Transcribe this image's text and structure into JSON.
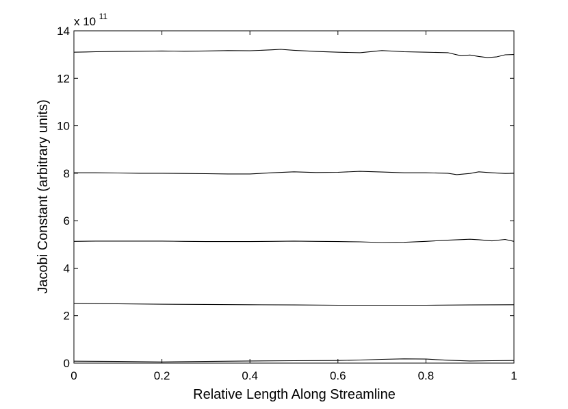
{
  "chart_data": {
    "type": "line",
    "title": "",
    "xlabel": "Relative Length Along Streamline",
    "ylabel": "Jacobi Constant (arbitrary units)",
    "y_multiplier": {
      "base": "x 10",
      "exponent": "11"
    },
    "xlim": [
      0,
      1
    ],
    "ylim": [
      0,
      14
    ],
    "x_ticks": [
      0,
      0.2,
      0.4,
      0.6,
      0.8,
      1
    ],
    "x_tick_labels": [
      "0",
      "0.2",
      "0.4",
      "0.6",
      "0.8",
      "1"
    ],
    "y_ticks": [
      0,
      2,
      4,
      6,
      8,
      10,
      12,
      14
    ],
    "y_tick_labels": [
      "0",
      "2",
      "4",
      "6",
      "8",
      "10",
      "12",
      "14"
    ],
    "grid": false,
    "line_color": "#000000",
    "series": [
      {
        "x": [
          0,
          0.05,
          0.1,
          0.15,
          0.2,
          0.25,
          0.3,
          0.35,
          0.4,
          0.45,
          0.47,
          0.5,
          0.55,
          0.6,
          0.65,
          0.7,
          0.75,
          0.8,
          0.85,
          0.88,
          0.9,
          0.92,
          0.94,
          0.96,
          0.98,
          1
        ],
        "y": [
          13.1,
          13.12,
          13.13,
          13.14,
          13.15,
          13.14,
          13.15,
          13.17,
          13.16,
          13.2,
          13.22,
          13.18,
          13.13,
          13.1,
          13.08,
          13.17,
          13.12,
          13.1,
          13.08,
          12.95,
          12.98,
          12.92,
          12.87,
          12.9,
          12.99,
          13.0
        ]
      },
      {
        "x": [
          0,
          0.05,
          0.1,
          0.15,
          0.2,
          0.25,
          0.3,
          0.35,
          0.4,
          0.45,
          0.5,
          0.55,
          0.6,
          0.65,
          0.7,
          0.75,
          0.8,
          0.85,
          0.87,
          0.9,
          0.92,
          0.95,
          0.98,
          1
        ],
        "y": [
          8.02,
          8.02,
          8.01,
          8.0,
          8.0,
          7.99,
          7.98,
          7.97,
          7.97,
          8.02,
          8.06,
          8.03,
          8.04,
          8.08,
          8.05,
          8.02,
          8.02,
          8.0,
          7.94,
          7.99,
          8.06,
          8.02,
          7.99,
          8.0
        ]
      },
      {
        "x": [
          0,
          0.05,
          0.1,
          0.15,
          0.2,
          0.25,
          0.3,
          0.35,
          0.4,
          0.45,
          0.5,
          0.55,
          0.6,
          0.65,
          0.7,
          0.75,
          0.8,
          0.85,
          0.9,
          0.92,
          0.95,
          0.98,
          1
        ],
        "y": [
          5.13,
          5.14,
          5.14,
          5.14,
          5.14,
          5.13,
          5.12,
          5.12,
          5.12,
          5.13,
          5.14,
          5.13,
          5.12,
          5.11,
          5.08,
          5.09,
          5.13,
          5.18,
          5.22,
          5.2,
          5.15,
          5.21,
          5.13
        ]
      },
      {
        "x": [
          0,
          0.1,
          0.2,
          0.3,
          0.4,
          0.5,
          0.6,
          0.7,
          0.8,
          0.9,
          1
        ],
        "y": [
          2.52,
          2.5,
          2.48,
          2.47,
          2.46,
          2.45,
          2.44,
          2.44,
          2.44,
          2.45,
          2.46
        ]
      },
      {
        "x": [
          0,
          0.1,
          0.2,
          0.3,
          0.4,
          0.5,
          0.6,
          0.65,
          0.7,
          0.75,
          0.8,
          0.85,
          0.9,
          0.95,
          1
        ],
        "y": [
          0.08,
          0.07,
          0.05,
          0.07,
          0.09,
          0.1,
          0.11,
          0.13,
          0.16,
          0.18,
          0.17,
          0.12,
          0.09,
          0.1,
          0.11
        ]
      }
    ]
  }
}
